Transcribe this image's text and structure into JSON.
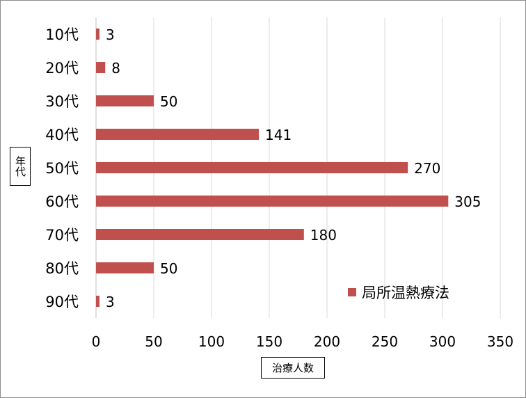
{
  "chart_data": {
    "type": "bar",
    "orientation": "horizontal",
    "categories": [
      "10代",
      "20代",
      "30代",
      "40代",
      "50代",
      "60代",
      "70代",
      "80代",
      "90代"
    ],
    "series": [
      {
        "name": "局所温熱療法",
        "values": [
          3,
          8,
          50,
          141,
          270,
          305,
          180,
          50,
          3
        ]
      }
    ],
    "data_labels": [
      "3",
      "8",
      "50",
      "141",
      "270",
      "305",
      "180",
      "50",
      "3"
    ],
    "xlabel": "治療人数",
    "ylabel": "年代",
    "xlim": [
      0,
      350
    ],
    "xticks": [
      "0",
      "50",
      "100",
      "150",
      "200",
      "250",
      "300",
      "350"
    ],
    "grid": "vertical",
    "legend_position": "bottom-right",
    "bar_color": "#c0504d"
  },
  "legend": {
    "label": "局所温熱療法"
  },
  "axis": {
    "x_title": "治療人数",
    "y_title": "年代"
  }
}
